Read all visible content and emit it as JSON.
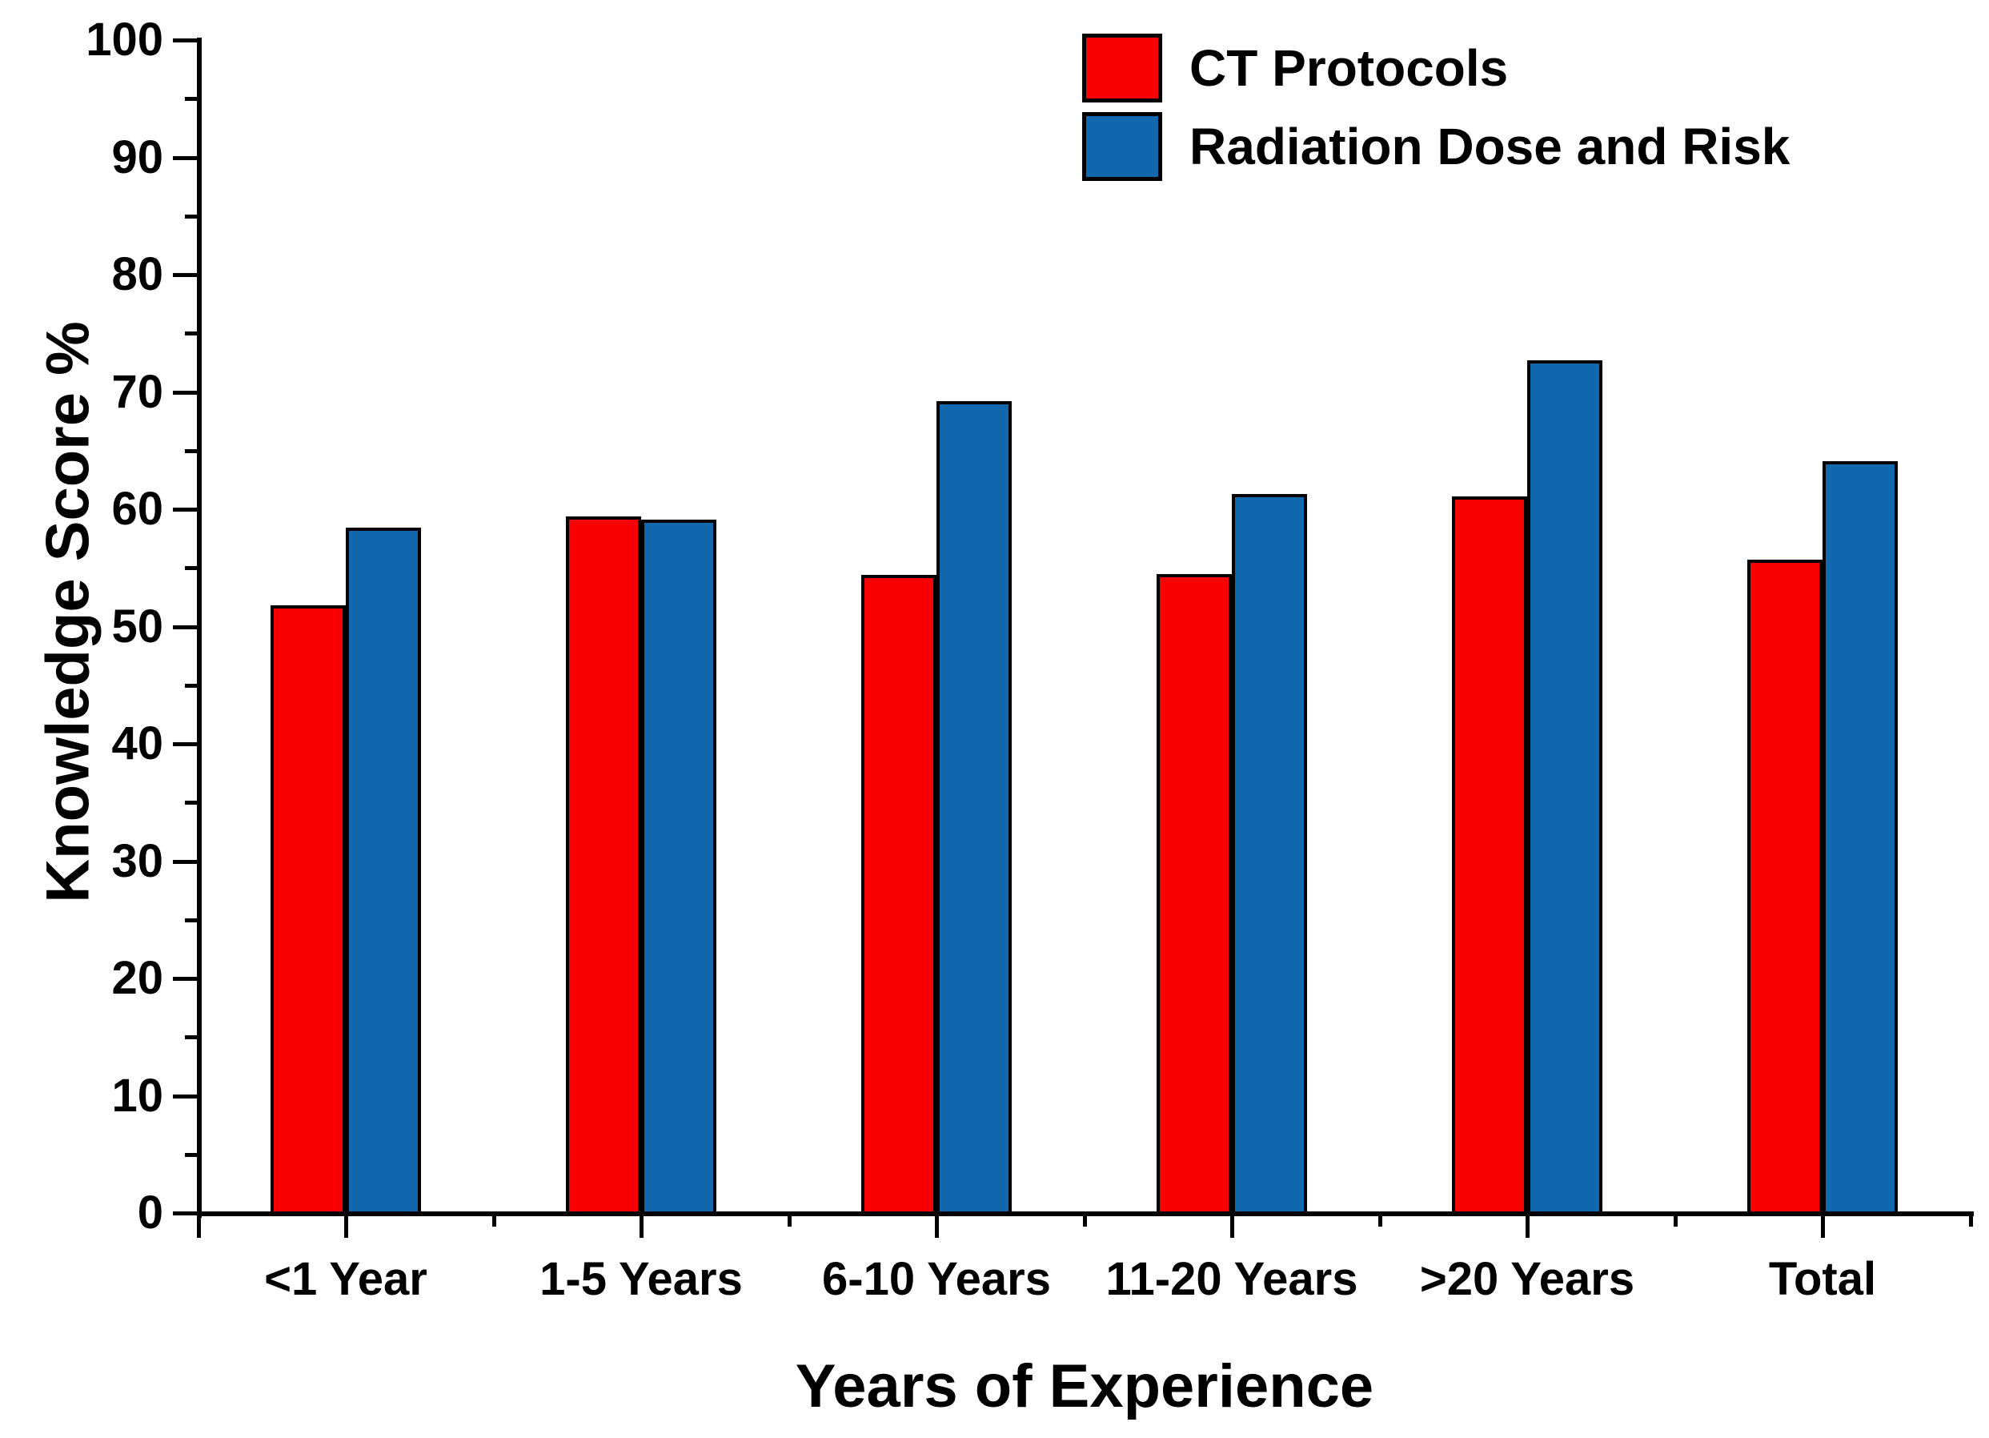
{
  "chart_data": {
    "type": "bar",
    "title": "",
    "xlabel": "Years of Experience",
    "ylabel": "Knowledge Score %",
    "categories": [
      "<1 Year",
      "1-5 Years",
      "6-10 Years",
      "11-20 Years",
      ">20 Years",
      "Total"
    ],
    "series": [
      {
        "name": "CT Protocols",
        "color": "#fb0000",
        "values": [
          51.8,
          59.4,
          54.4,
          54.5,
          61.1,
          55.7
        ]
      },
      {
        "name": "Radiation Dose and Risk",
        "color": "#1268ac",
        "values": [
          58.4,
          59.1,
          69.2,
          61.3,
          72.7,
          64.1
        ]
      }
    ],
    "ylim": [
      0,
      100
    ],
    "y_major_step": 10,
    "y_minor_step": 5,
    "y_tick_labels": [
      "0",
      "10",
      "20",
      "30",
      "40",
      "50",
      "60",
      "70",
      "80",
      "90",
      "100"
    ],
    "grid": false,
    "legend_position": "top-right",
    "bar_border_color": "#000000",
    "background_color": "#ffffff"
  }
}
